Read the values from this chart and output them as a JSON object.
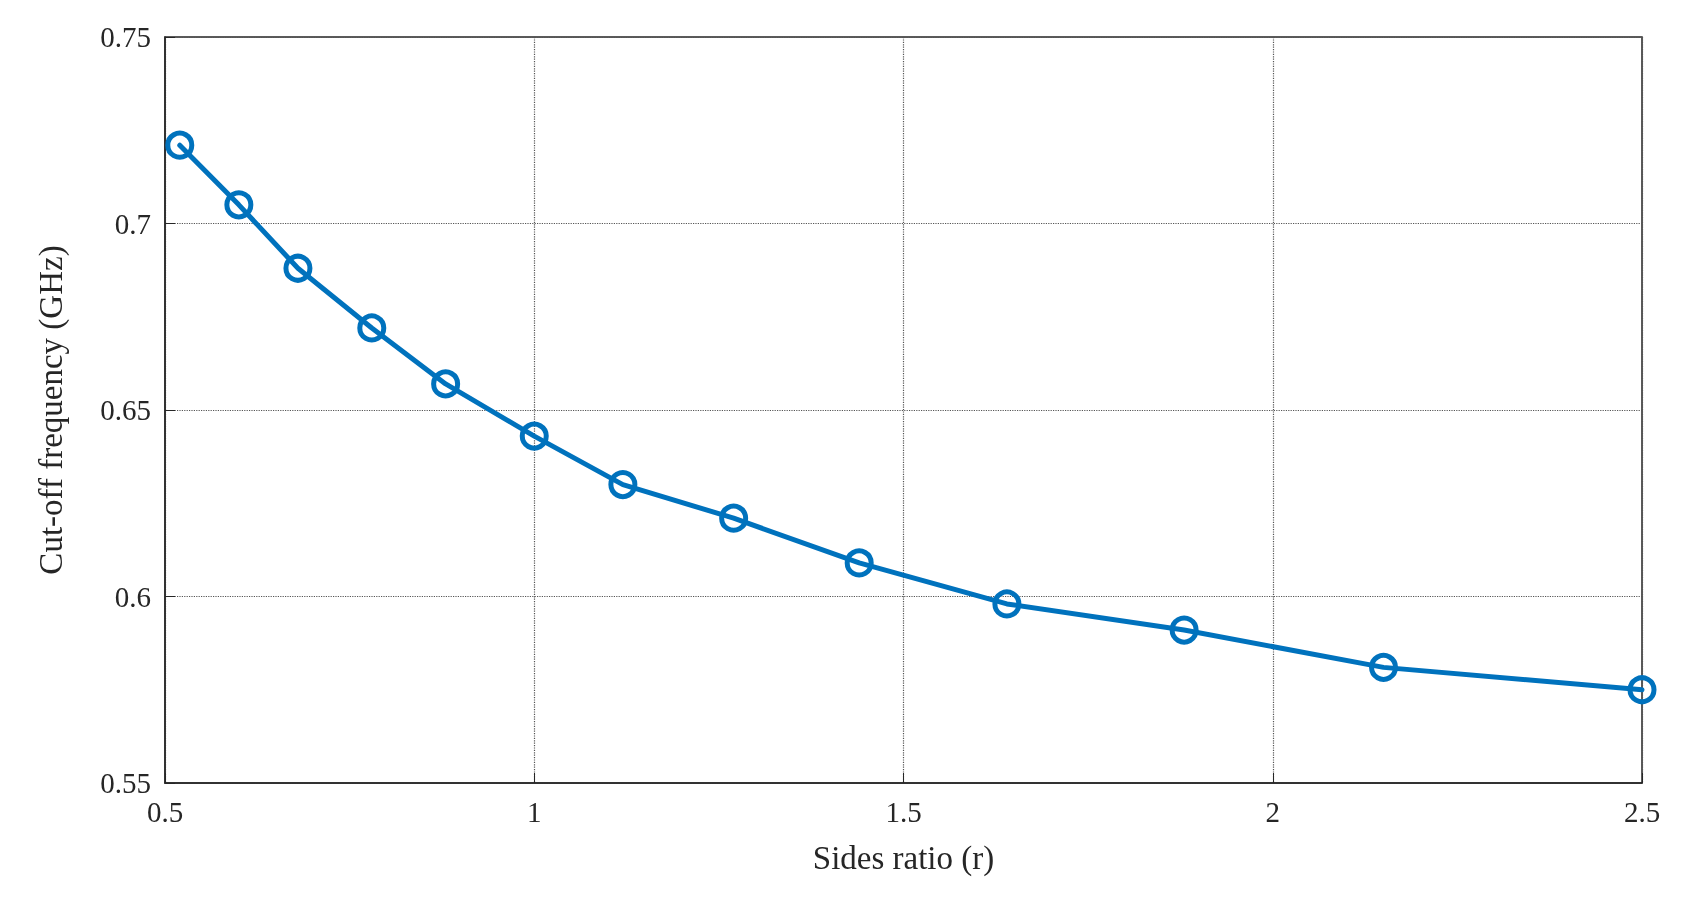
{
  "chart_data": {
    "type": "line",
    "xlabel": "Sides ratio (r)",
    "ylabel": "Cut-off frequency (GHz)",
    "x": [
      0.52,
      0.6,
      0.68,
      0.78,
      0.88,
      1.0,
      1.12,
      1.27,
      1.44,
      1.64,
      1.88,
      2.15,
      2.5
    ],
    "series": [
      {
        "color": "#0072bd",
        "values": [
          0.721,
          0.705,
          0.688,
          0.672,
          0.657,
          0.643,
          0.63,
          0.621,
          0.609,
          0.598,
          0.591,
          0.581,
          0.575
        ]
      }
    ],
    "xlim": [
      0.5,
      2.5
    ],
    "xticks": [
      0.5,
      1,
      1.5,
      2,
      2.5
    ],
    "ylim": [
      0.55,
      0.75
    ],
    "yticks": [
      0.55,
      0.6,
      0.65,
      0.7,
      0.75
    ],
    "grid": true,
    "marker": "circle",
    "line_style": "solid"
  }
}
